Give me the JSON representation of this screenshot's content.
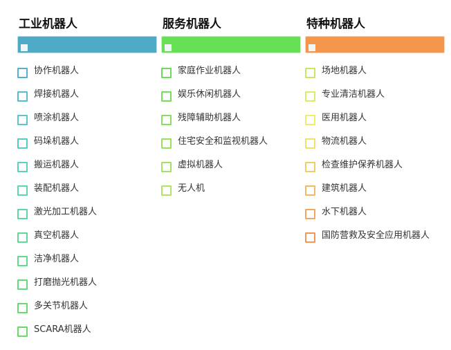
{
  "columns": [
    {
      "title": "工业机器人",
      "bar_color": "#4eaac6",
      "items": [
        {
          "label": "协作机器人",
          "color": "#52b0d0"
        },
        {
          "label": "焊接机器人",
          "color": "#56bcd0"
        },
        {
          "label": "喷涂机器人",
          "color": "#58c6cc"
        },
        {
          "label": "码垛机器人",
          "color": "#58ccc4"
        },
        {
          "label": "搬运机器人",
          "color": "#58d2bc"
        },
        {
          "label": "装配机器人",
          "color": "#5ad6b0"
        },
        {
          "label": "激光加工机器人",
          "color": "#5cd8a4"
        },
        {
          "label": "真空机器人",
          "color": "#5eda96"
        },
        {
          "label": "洁净机器人",
          "color": "#60dc88"
        },
        {
          "label": "打磨抛光机器人",
          "color": "#62dc7a"
        },
        {
          "label": "多关节机器人",
          "color": "#64dc6c"
        },
        {
          "label": "SCARA机器人",
          "color": "#66dc60"
        }
      ]
    },
    {
      "title": "服务机器人",
      "bar_color": "#66e055",
      "items": [
        {
          "label": "家庭作业机器人",
          "color": "#6adc58"
        },
        {
          "label": "娱乐休闲机器人",
          "color": "#78de5a"
        },
        {
          "label": "残障辅助机器人",
          "color": "#86e05c"
        },
        {
          "label": "住宅安全和监视机器人",
          "color": "#94e25e"
        },
        {
          "label": "虚拟机器人",
          "color": "#a2e260"
        },
        {
          "label": "无人机",
          "color": "#b0e462"
        }
      ]
    },
    {
      "title": "特种机器人",
      "bar_color": "#f4964c",
      "items": [
        {
          "label": "场地机器人",
          "color": "#c8e860"
        },
        {
          "label": "专业清洁机器人",
          "color": "#dcec64"
        },
        {
          "label": "医用机器人",
          "color": "#eeee6a"
        },
        {
          "label": "物流机器人",
          "color": "#f2e06a"
        },
        {
          "label": "检查维护保养机器人",
          "color": "#f4cc66"
        },
        {
          "label": "建筑机器人",
          "color": "#f4b862"
        },
        {
          "label": "水下机器人",
          "color": "#f4a65c"
        },
        {
          "label": "国防营救及安全应用机器人",
          "color": "#f49656"
        }
      ]
    }
  ]
}
